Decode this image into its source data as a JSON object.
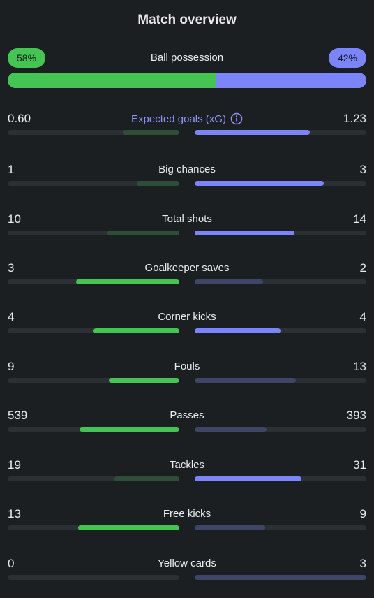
{
  "title": "Match overview",
  "colors": {
    "home": "#44c553",
    "away": "#7c84f9",
    "home_dim": "#2e4e38",
    "away_dim": "#3f4566",
    "track": "#2a3034",
    "link": "#8f95f5"
  },
  "possession": {
    "label": "Ball possession",
    "home_pct_label": "58%",
    "away_pct_label": "42%",
    "home_pct": 58,
    "away_pct": 42
  },
  "stats": [
    {
      "label": "Expected goals (xG)",
      "home": "0.60",
      "away": "1.23",
      "home_fill": 0.33,
      "away_fill": 0.67,
      "home_strong": false,
      "away_strong": true,
      "info": true
    },
    {
      "label": "Big chances",
      "home": "1",
      "away": "3",
      "home_fill": 0.25,
      "away_fill": 0.75,
      "home_strong": false,
      "away_strong": true
    },
    {
      "label": "Total shots",
      "home": "10",
      "away": "14",
      "home_fill": 0.42,
      "away_fill": 0.58,
      "home_strong": false,
      "away_strong": true
    },
    {
      "label": "Goalkeeper saves",
      "home": "3",
      "away": "2",
      "home_fill": 0.6,
      "away_fill": 0.4,
      "home_strong": true,
      "away_strong": false
    },
    {
      "label": "Corner kicks",
      "home": "4",
      "away": "4",
      "home_fill": 0.5,
      "away_fill": 0.5,
      "home_strong": true,
      "away_strong": true
    },
    {
      "label": "Fouls",
      "home": "9",
      "away": "13",
      "home_fill": 0.41,
      "away_fill": 0.59,
      "home_strong": true,
      "away_strong": false
    },
    {
      "label": "Passes",
      "home": "539",
      "away": "393",
      "home_fill": 0.58,
      "away_fill": 0.42,
      "home_strong": true,
      "away_strong": false
    },
    {
      "label": "Tackles",
      "home": "19",
      "away": "31",
      "home_fill": 0.38,
      "away_fill": 0.62,
      "home_strong": false,
      "away_strong": true
    },
    {
      "label": "Free kicks",
      "home": "13",
      "away": "9",
      "home_fill": 0.59,
      "away_fill": 0.41,
      "home_strong": true,
      "away_strong": false
    },
    {
      "label": "Yellow cards",
      "home": "0",
      "away": "3",
      "home_fill": 0.0,
      "away_fill": 1.0,
      "home_strong": false,
      "away_strong": false
    }
  ]
}
